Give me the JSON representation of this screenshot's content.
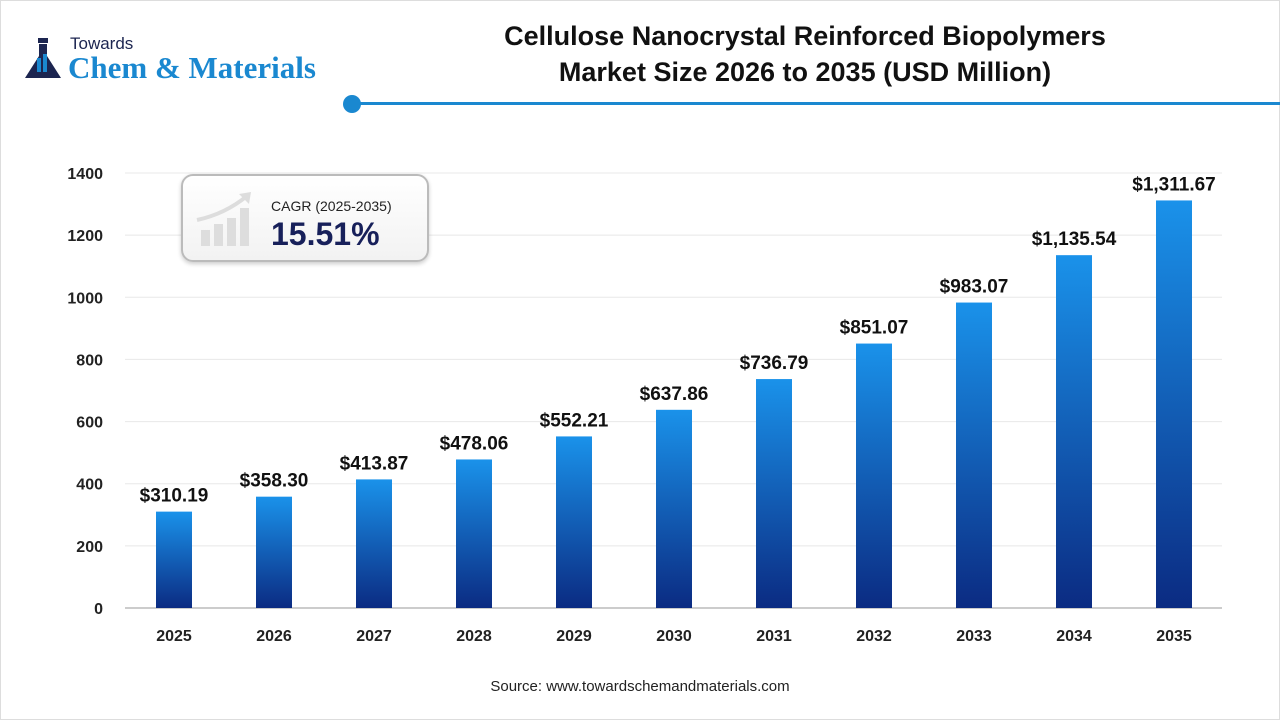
{
  "logo": {
    "line1": "Towards",
    "line2": "Chem & Materials"
  },
  "title_line1": "Cellulose Nanocrystal Reinforced Biopolymers",
  "title_line2": "Market Size 2026 to 2035  (USD Million)",
  "cagr": {
    "label": "CAGR (2025-2035)",
    "value": "15.51%"
  },
  "source": "Source: www.towardschemandmaterials.com",
  "colors": {
    "accent": "#1a88d0",
    "bar_top": "#1a92ea",
    "bar_bottom": "#0b2b82"
  },
  "chart_data": {
    "type": "bar",
    "categories": [
      "2025",
      "2026",
      "2027",
      "2028",
      "2029",
      "2030",
      "2031",
      "2032",
      "2033",
      "2034",
      "2035"
    ],
    "values": [
      310.19,
      358.3,
      413.87,
      478.06,
      552.21,
      637.86,
      736.79,
      851.07,
      983.07,
      1135.54,
      1311.67
    ],
    "data_labels": [
      "$310.19",
      "$358.30",
      "$413.87",
      "$478.06",
      "$552.21",
      "$637.86",
      "$736.79",
      "$851.07",
      "$983.07",
      "$1,135.54",
      "$1,311.67"
    ],
    "yticks": [
      0,
      200,
      400,
      600,
      800,
      1000,
      1200,
      1400
    ],
    "ylim": [
      0,
      1400
    ],
    "grid": true
  }
}
